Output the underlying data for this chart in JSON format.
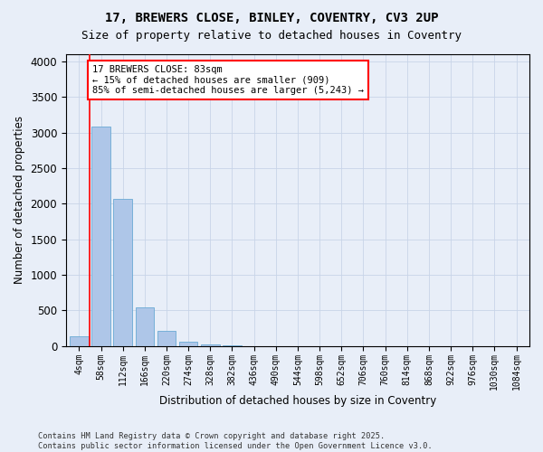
{
  "title_line1": "17, BREWERS CLOSE, BINLEY, COVENTRY, CV3 2UP",
  "title_line2": "Size of property relative to detached houses in Coventry",
  "xlabel": "Distribution of detached houses by size in Coventry",
  "ylabel": "Number of detached properties",
  "categories": [
    "4sqm",
    "58sqm",
    "112sqm",
    "166sqm",
    "220sqm",
    "274sqm",
    "328sqm",
    "382sqm",
    "436sqm",
    "490sqm",
    "544sqm",
    "598sqm",
    "652sqm",
    "706sqm",
    "760sqm",
    "814sqm",
    "868sqm",
    "922sqm",
    "976sqm",
    "1030sqm",
    "1084sqm"
  ],
  "values": [
    140,
    3080,
    2070,
    540,
    210,
    65,
    25,
    5,
    2,
    0,
    0,
    0,
    0,
    0,
    0,
    0,
    0,
    0,
    0,
    0,
    0
  ],
  "bar_color": "#aec6e8",
  "bar_edge_color": "#6aaad4",
  "grid_color": "#c8d4e8",
  "background_color": "#e8eef8",
  "vline_x": 0.5,
  "vline_color": "red",
  "annotation_text": "17 BREWERS CLOSE: 83sqm\n← 15% of detached houses are smaller (909)\n85% of semi-detached houses are larger (5,243) →",
  "annotation_box_color": "white",
  "annotation_box_edge": "red",
  "ylim": [
    0,
    4100
  ],
  "yticks": [
    0,
    500,
    1000,
    1500,
    2000,
    2500,
    3000,
    3500,
    4000
  ],
  "footer": "Contains HM Land Registry data © Crown copyright and database right 2025.\nContains public sector information licensed under the Open Government Licence v3.0."
}
